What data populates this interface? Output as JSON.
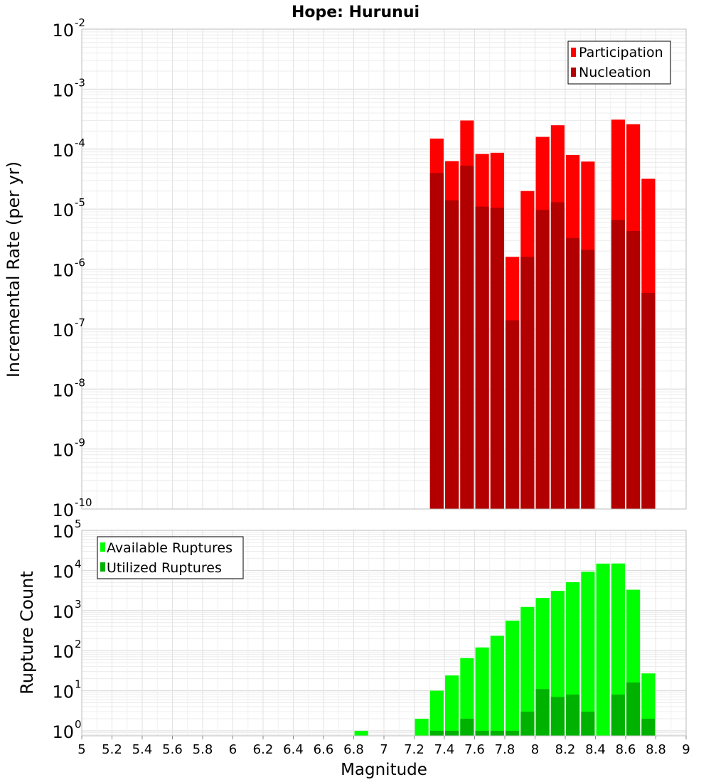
{
  "figure": {
    "title": "Hope: Hurunui",
    "xlabel": "Magnitude"
  },
  "chart_data": [
    {
      "type": "bar",
      "title": "Hope: Hurunui",
      "xlabel": "Magnitude",
      "ylabel": "Incremental Rate (per yr)",
      "yscale": "log",
      "xlim": [
        5,
        9
      ],
      "ylim": [
        1e-10,
        0.01
      ],
      "y_tick_exponents": [
        "-10",
        "-9",
        "-8",
        "-7",
        "-6",
        "-5",
        "-4",
        "-3",
        "-2"
      ],
      "grid": true,
      "legend_position": "top-right",
      "bar_width": 0.09,
      "colors": {
        "Participation": "#ff0000",
        "Nucleation": "#b20000"
      },
      "x": [
        7.35,
        7.45,
        7.55,
        7.65,
        7.75,
        7.85,
        7.95,
        8.05,
        8.15,
        8.25,
        8.35,
        8.55,
        8.65,
        8.75
      ],
      "series": [
        {
          "name": "Participation",
          "values": [
            0.00015,
            6.3e-05,
            0.0003,
            8.3e-05,
            8.7e-05,
            1.6e-06,
            2e-05,
            0.00016,
            0.00025,
            8e-05,
            6.2e-05,
            0.00031,
            0.00026,
            3.2e-05
          ]
        },
        {
          "name": "Nucleation",
          "values": [
            4e-05,
            1.4e-05,
            5.3e-05,
            1.1e-05,
            1.05e-05,
            1.4e-07,
            1.6e-06,
            9.7e-06,
            1.3e-05,
            3.3e-06,
            2.1e-06,
            6.6e-06,
            4.3e-06,
            4e-07
          ]
        }
      ]
    },
    {
      "type": "bar",
      "xlabel": "Magnitude",
      "ylabel": "Rupture Count",
      "yscale": "log",
      "xlim": [
        5,
        9
      ],
      "ylim": [
        0.75,
        100000.0
      ],
      "y_tick_exponents": [
        "0",
        "1",
        "2",
        "3",
        "4",
        "5"
      ],
      "x_ticks": [
        "5",
        "5.2",
        "5.4",
        "5.6",
        "5.8",
        "6",
        "6.2",
        "6.4",
        "6.6",
        "6.8",
        "7",
        "7.2",
        "7.4",
        "7.6",
        "7.8",
        "8",
        "8.2",
        "8.4",
        "8.6",
        "8.8",
        "9"
      ],
      "grid": true,
      "legend_position": "top-left",
      "bar_width": 0.09,
      "colors": {
        "Available Ruptures": "#00ff00",
        "Utilized Ruptures": "#00b200"
      },
      "x": [
        6.85,
        7.25,
        7.35,
        7.45,
        7.55,
        7.65,
        7.75,
        7.85,
        7.95,
        8.05,
        8.15,
        8.25,
        8.35,
        8.45,
        8.55,
        8.65,
        8.75
      ],
      "series": [
        {
          "name": "Available Ruptures",
          "values": [
            1,
            2,
            10,
            24,
            65,
            120,
            235,
            560,
            1230,
            2050,
            3100,
            5100,
            9300,
            14800,
            14900,
            3300,
            27
          ]
        },
        {
          "name": "Utilized Ruptures",
          "values": [
            null,
            null,
            1,
            1,
            2,
            1,
            1,
            1,
            3,
            11,
            7,
            8,
            3,
            null,
            8,
            16,
            2
          ]
        }
      ]
    }
  ]
}
